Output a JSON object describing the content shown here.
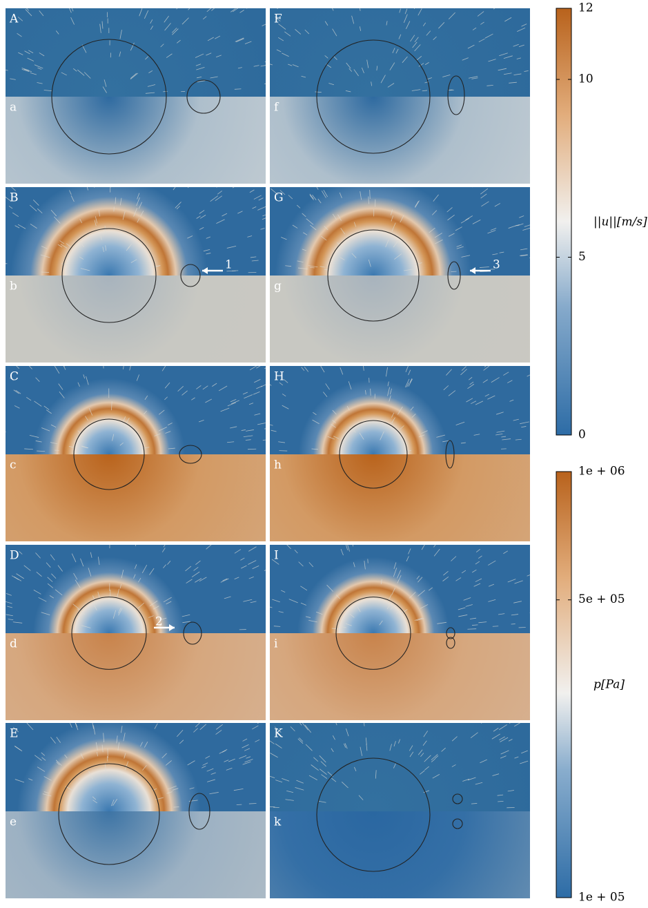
{
  "panels": [
    {
      "upper": "A",
      "lower": "a"
    },
    {
      "upper": "F",
      "lower": "f"
    },
    {
      "upper": "B",
      "lower": "b",
      "annotation": "1"
    },
    {
      "upper": "G",
      "lower": "g",
      "annotation": "3"
    },
    {
      "upper": "C",
      "lower": "c"
    },
    {
      "upper": "H",
      "lower": "h"
    },
    {
      "upper": "D",
      "lower": "d",
      "annotation": "2"
    },
    {
      "upper": "I",
      "lower": "i"
    },
    {
      "upper": "E",
      "lower": "e"
    },
    {
      "upper": "K",
      "lower": "k"
    }
  ],
  "colorbars": [
    {
      "label": "||u||[m/s]",
      "lim": [
        0,
        12
      ],
      "ticks": [
        0,
        5,
        10,
        12
      ],
      "log": false
    },
    {
      "label": "p[Pa]",
      "lim": [
        100000,
        1000000
      ],
      "log": true,
      "ticks": [
        {
          "value": 100000,
          "label": "1e + 05"
        },
        {
          "value": 500000,
          "label": "5e + 05"
        },
        {
          "value": 1000000,
          "label": "1e + 06"
        }
      ]
    }
  ]
}
